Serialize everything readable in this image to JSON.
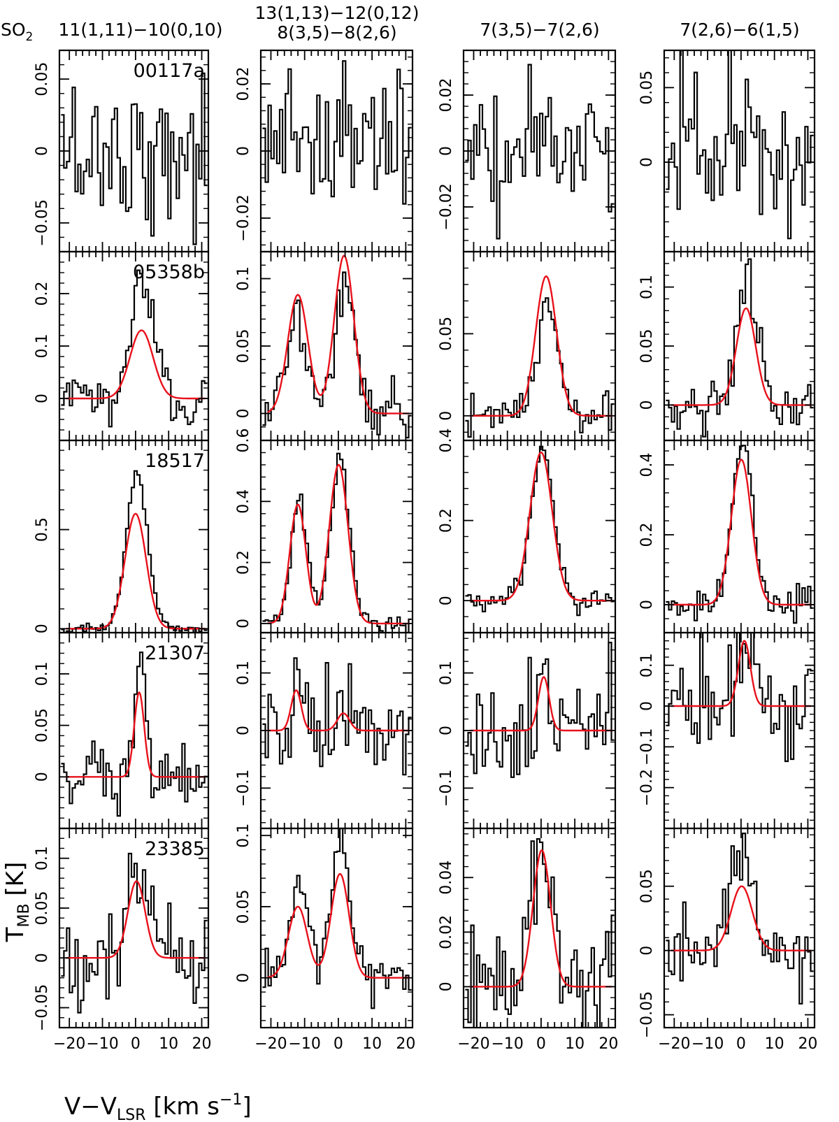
{
  "chart_data": {
    "type": "line",
    "molecule_label": "SO",
    "molecule_subscript": "2",
    "xlabel": {
      "main": "V−V",
      "sub": "LSR",
      "unit_pre": " [km s",
      "unit_sup": "−1",
      "unit_post": "]"
    },
    "ylabel": {
      "main": "T",
      "sub": "MB",
      "unit": " [K]"
    },
    "xlim": [
      -23,
      22
    ],
    "xticks": [
      -20,
      -10,
      0,
      10,
      20
    ],
    "grid": false,
    "columns": [
      {
        "title_lines": [
          "11(1,11)−10(0,10)"
        ]
      },
      {
        "title_lines": [
          "13(1,13)−12(0,12)",
          "8(3,5)−8(2,6)"
        ]
      },
      {
        "title_lines": [
          "7(3,5)−7(2,6)"
        ]
      },
      {
        "title_lines": [
          "7(2,6)−6(1,5)"
        ]
      }
    ],
    "sources": [
      "00117a",
      "05358b",
      "18517",
      "21307",
      "23385"
    ],
    "panels": [
      [
        {
          "ylim": [
            -0.07,
            0.07
          ],
          "yticks": [
            -0.05,
            0,
            0.05
          ],
          "yticklabels": [
            "−0.05",
            "0",
            "0.05"
          ],
          "noise": 0.026,
          "fit": []
        },
        {
          "ylim": [
            -0.03,
            0.03
          ],
          "yticks": [
            -0.02,
            0,
            0.02
          ],
          "yticklabels": [
            "−0.02",
            "0",
            "0.02"
          ],
          "noise": 0.012,
          "fit": []
        },
        {
          "ylim": [
            -0.036,
            0.036
          ],
          "yticks": [
            -0.02,
            0,
            0.02
          ],
          "yticklabels": [
            "−0.02",
            "0",
            "0.02"
          ],
          "noise": 0.012,
          "fit": []
        },
        {
          "ylim": [
            -0.06,
            0.075
          ],
          "yticks": [
            0,
            0.05
          ],
          "yticklabels": [
            "0",
            "0.05"
          ],
          "noise": 0.024,
          "fit": []
        }
      ],
      [
        {
          "ylim": [
            -0.08,
            0.28
          ],
          "yticks": [
            0,
            0.1,
            0.2
          ],
          "yticklabels": [
            "0",
            "0.1",
            "0.2"
          ],
          "noise": 0.025,
          "fit": [
            {
              "amp": 0.13,
              "center": 1.8,
              "sigma": 3.5
            }
          ],
          "obs_peak_ratio": 1.6
        },
        {
          "ylim": [
            -0.02,
            0.12
          ],
          "yticks": [
            0,
            0.05,
            0.1
          ],
          "yticklabels": [
            "0",
            "0.05",
            "0.1"
          ],
          "noise": 0.01,
          "fit": [
            {
              "amp": 0.088,
              "center": -12.0,
              "sigma": 3.0
            },
            {
              "amp": 0.117,
              "center": 1.7,
              "sigma": 2.9
            }
          ],
          "obs_peak_ratio": 0.85
        },
        {
          "ylim": [
            -0.015,
            0.1
          ],
          "yticks": [
            0,
            0.05
          ],
          "yticklabels": [
            "0",
            "0.05"
          ],
          "noise": 0.007,
          "fit": [
            {
              "amp": 0.085,
              "center": 1.5,
              "sigma": 3.1
            }
          ],
          "obs_peak_ratio": 0.72
        },
        {
          "ylim": [
            -0.03,
            0.13
          ],
          "yticks": [
            0,
            0.05,
            0.1
          ],
          "yticklabels": [
            "0",
            "0.05",
            "0.1"
          ],
          "noise": 0.012,
          "fit": [
            {
              "amp": 0.082,
              "center": 1.5,
              "sigma": 2.9
            }
          ],
          "obs_peak_ratio": 1.35
        }
      ],
      [
        {
          "ylim": [
            -0.02,
            0.95
          ],
          "yticks": [
            0,
            0.5
          ],
          "yticklabels": [
            "0",
            "0.5"
          ],
          "noise": 0.012,
          "fit": [
            {
              "amp": 0.58,
              "center": 0.0,
              "sigma": 3.2
            }
          ],
          "obs_peak_ratio": 1.34
        },
        {
          "ylim": [
            -0.03,
            0.6
          ],
          "yticks": [
            0,
            0.2,
            0.4,
            0.6
          ],
          "yticklabels": [
            "0",
            "0.2",
            "0.4",
            "0.6"
          ],
          "noise": 0.015,
          "fit": [
            {
              "amp": 0.39,
              "center": -12.0,
              "sigma": 2.4
            },
            {
              "amp": 0.52,
              "center": 0.1,
              "sigma": 2.8
            }
          ],
          "obs_peak_ratio": 1.05
        },
        {
          "ylim": [
            -0.08,
            0.4
          ],
          "yticks": [
            0,
            0.2,
            0.4
          ],
          "yticklabels": [
            "0",
            "0.2",
            "0.4"
          ],
          "noise": 0.015,
          "fit": [
            {
              "amp": 0.37,
              "center": 0.0,
              "sigma": 3.3
            }
          ],
          "obs_peak_ratio": 1.02
        },
        {
          "ylim": [
            -0.08,
            0.47
          ],
          "yticks": [
            0,
            0.2,
            0.4
          ],
          "yticklabels": [
            "0",
            "0.2",
            "0.4"
          ],
          "noise": 0.025,
          "fit": [
            {
              "amp": 0.415,
              "center": 0.1,
              "sigma": 3.0
            }
          ],
          "obs_peak_ratio": 1.1
        }
      ],
      [
        {
          "ylim": [
            -0.05,
            0.14
          ],
          "yticks": [
            0,
            0.05,
            0.1
          ],
          "yticklabels": [
            "0",
            "0.05",
            "0.1"
          ],
          "noise": 0.015,
          "fit": [
            {
              "amp": 0.082,
              "center": 1.1,
              "sigma": 1.5
            }
          ],
          "obs_peak_ratio": 1.55
        },
        {
          "ylim": [
            -0.17,
            0.17
          ],
          "yticks": [
            -0.1,
            0,
            0.1
          ],
          "yticklabels": [
            "−0.1",
            "0",
            "0.1"
          ],
          "noise": 0.055,
          "fit": [
            {
              "amp": 0.07,
              "center": -12.5,
              "sigma": 1.5
            },
            {
              "amp": 0.03,
              "center": 1.5,
              "sigma": 1.8
            }
          ],
          "obs_peak_ratio": 1.6
        },
        {
          "ylim": [
            -0.17,
            0.17
          ],
          "yticks": [
            -0.1,
            0,
            0.1
          ],
          "yticklabels": [
            "−0.1",
            "0",
            "0.1"
          ],
          "noise": 0.05,
          "fit": [
            {
              "amp": 0.093,
              "center": 0.8,
              "sigma": 1.6
            }
          ],
          "obs_peak_ratio": 1.5
        },
        {
          "ylim": [
            -0.3,
            0.18
          ],
          "yticks": [
            -0.2,
            -0.1,
            0,
            0.1
          ],
          "yticklabels": [
            "−0.2",
            "−0.1",
            "0",
            "0.1"
          ],
          "noise": 0.07,
          "fit": [
            {
              "amp": 0.16,
              "center": 1.0,
              "sigma": 1.8
            }
          ],
          "obs_peak_ratio": 0.9
        }
      ],
      [
        {
          "ylim": [
            -0.07,
            0.13
          ],
          "yticks": [
            -0.05,
            0,
            0.05,
            0.1
          ],
          "yticklabels": [
            "−0.05",
            "0",
            "0.05",
            "0.1"
          ],
          "noise": 0.025,
          "fit": [
            {
              "amp": 0.077,
              "center": 0.3,
              "sigma": 2.6
            }
          ],
          "obs_peak_ratio": 1.25
        },
        {
          "ylim": [
            -0.035,
            0.105
          ],
          "yticks": [
            0,
            0.05,
            0.1
          ],
          "yticklabels": [
            "0",
            "0.05",
            "0.1"
          ],
          "noise": 0.009,
          "fit": [
            {
              "amp": 0.05,
              "center": -12.0,
              "sigma": 2.8
            },
            {
              "amp": 0.073,
              "center": 0.5,
              "sigma": 2.7
            }
          ],
          "obs_peak_ratio": 1.3
        },
        {
          "ylim": [
            -0.015,
            0.058
          ],
          "yticks": [
            0,
            0.02,
            0.04
          ],
          "yticklabels": [
            "0",
            "0.02",
            "0.04"
          ],
          "noise": 0.011,
          "fit": [
            {
              "amp": 0.05,
              "center": 0.2,
              "sigma": 2.6
            }
          ],
          "obs_peak_ratio": 1.1
        },
        {
          "ylim": [
            -0.06,
            0.095
          ],
          "yticks": [
            -0.05,
            0,
            0.05
          ],
          "yticklabels": [
            "−0.05",
            "0",
            "0.05"
          ],
          "noise": 0.015,
          "fit": [
            {
              "amp": 0.05,
              "center": 0.2,
              "sigma": 3.2
            }
          ],
          "obs_peak_ratio": 1.65
        }
      ]
    ]
  }
}
